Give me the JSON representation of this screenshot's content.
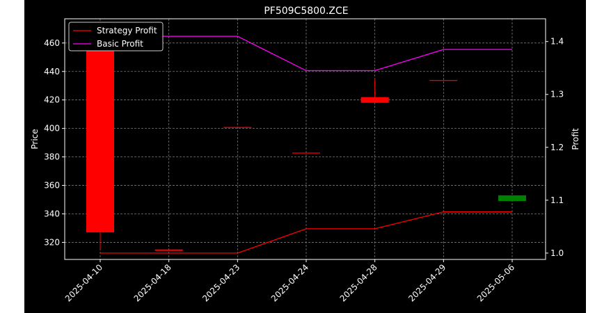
{
  "chart_data": {
    "type": "candlestick",
    "title": "PF509C5800.ZCE",
    "xlabel": "",
    "ylabel_left": "Price",
    "ylabel_right": "Profit",
    "categories": [
      "2025-04-10",
      "2025-04-18",
      "2025-04-23",
      "2025-04-24",
      "2025-04-28",
      "2025-04-29",
      "2025-05-06"
    ],
    "candles": [
      {
        "date": "2025-04-10",
        "open": 467,
        "close": 327,
        "high": 467,
        "low": 315,
        "color": "#ff0000"
      },
      {
        "date": "2025-04-18",
        "open": 315,
        "close": 314,
        "high": 315,
        "low": 314,
        "color": "#ff0000"
      },
      {
        "date": "2025-04-23",
        "open": 401,
        "close": 400.5,
        "high": 401,
        "low": 400.5,
        "color": "#ff0000"
      },
      {
        "date": "2025-04-24",
        "open": 383,
        "close": 382.5,
        "high": 383,
        "low": 382.5,
        "color": "#ff0000"
      },
      {
        "date": "2025-04-28",
        "open": 422,
        "close": 418,
        "high": 435,
        "low": 418,
        "color": "#ff0000"
      },
      {
        "date": "2025-04-29",
        "open": 434,
        "close": 433.5,
        "high": 434,
        "low": 433.5,
        "color": "#ff0000"
      },
      {
        "date": "2025-05-06",
        "open": 349,
        "close": 353,
        "high": 353,
        "low": 349,
        "color": "#008000"
      }
    ],
    "series": [
      {
        "name": "Strategy Profit",
        "axis": "right",
        "color": "#ff0000",
        "values": [
          1.0,
          1.0,
          1.0,
          1.046,
          1.046,
          1.078,
          1.078
        ]
      },
      {
        "name": "Basic Profit",
        "axis": "right",
        "color": "#ff00ff",
        "values": [
          1.41,
          1.41,
          1.41,
          1.345,
          1.345,
          1.385,
          1.385
        ]
      }
    ],
    "ylim_left": [
      308,
      477
    ],
    "ylim_right": [
      0.988,
      1.443
    ],
    "yticks_left": [
      320,
      340,
      360,
      380,
      400,
      420,
      440,
      460
    ],
    "yticks_right": [
      1.0,
      1.1,
      1.2,
      1.3,
      1.4
    ],
    "grid": true,
    "legend_position": "upper-left",
    "background": "#000000",
    "text_color": "#ffffff"
  }
}
